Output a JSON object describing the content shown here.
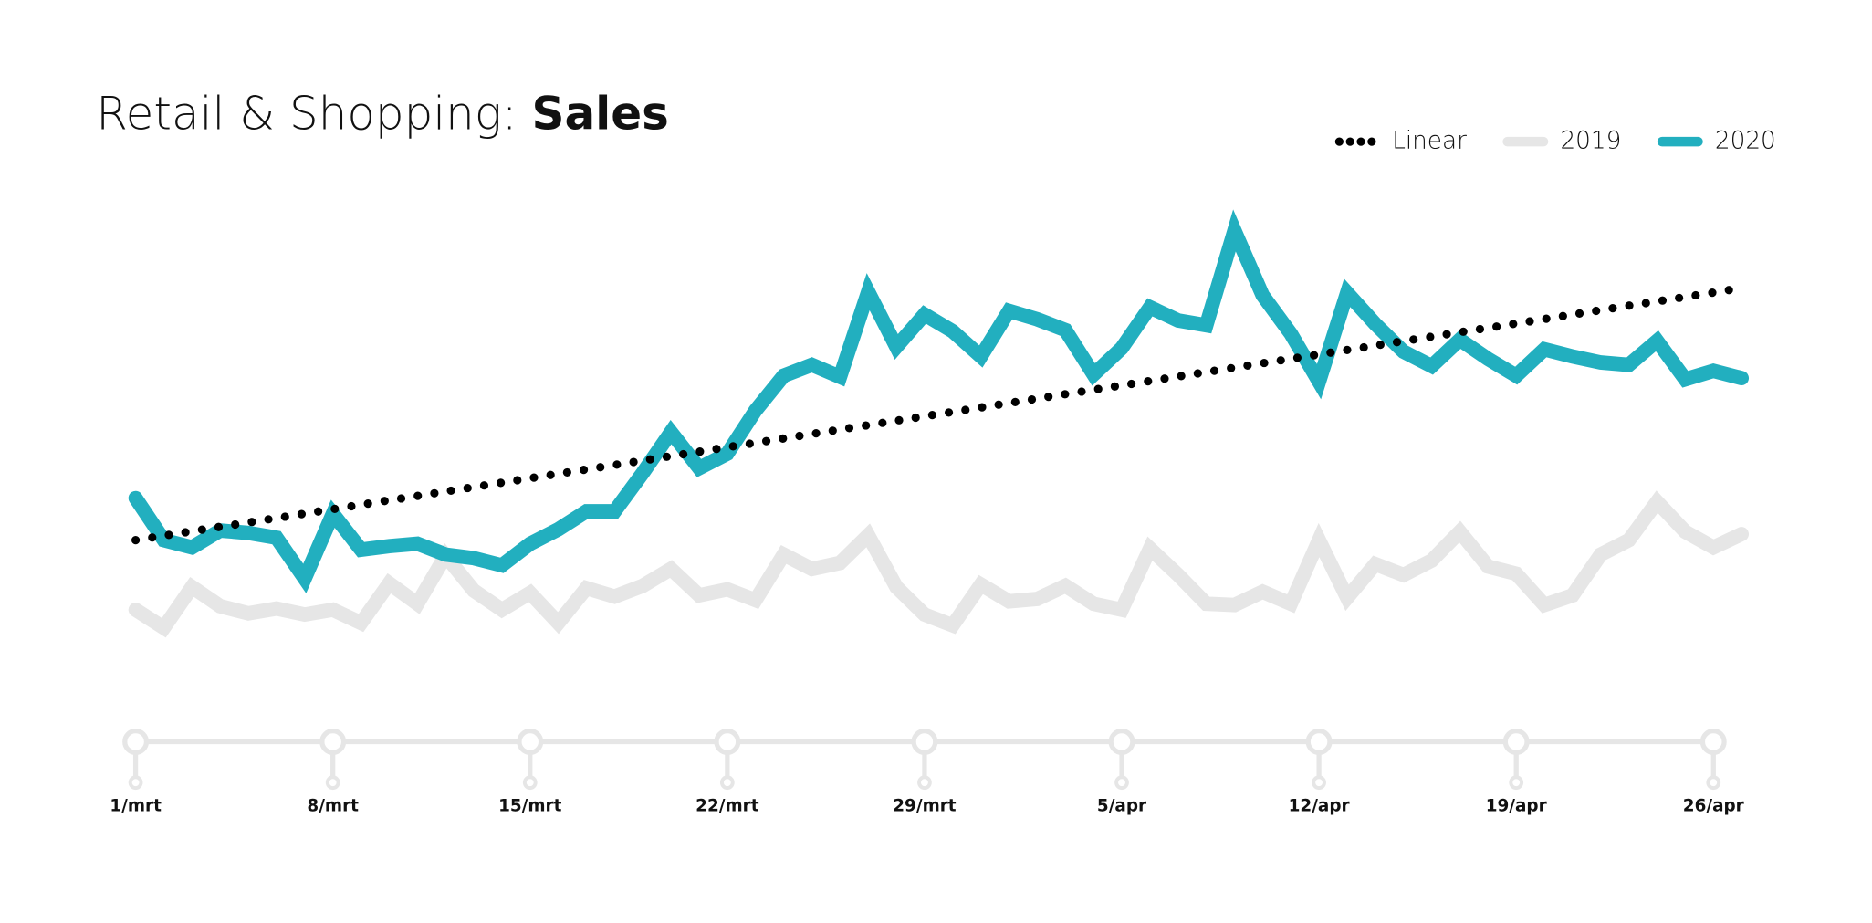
{
  "chart_data": {
    "type": "line",
    "title": "Retail & Shopping:",
    "title_emphasis": "Sales",
    "categories": [
      "1/mrt",
      null,
      null,
      null,
      null,
      null,
      null,
      "8/mrt",
      null,
      null,
      null,
      null,
      null,
      null,
      "15/mrt",
      null,
      null,
      null,
      null,
      null,
      null,
      "22/mrt",
      null,
      null,
      null,
      null,
      null,
      null,
      "29/mrt",
      null,
      null,
      null,
      null,
      null,
      null,
      "5/apr",
      null,
      null,
      null,
      null,
      null,
      null,
      "12/apr",
      null,
      null,
      null,
      null,
      null,
      null,
      "19/apr",
      null,
      null,
      null,
      null,
      null,
      null,
      "26/apr",
      null
    ],
    "ylim": [
      0,
      450
    ],
    "legend": "top-right",
    "series": [
      {
        "name": "Linear",
        "color": "#000000",
        "style": "dotted",
        "values": [
          150.0,
          153.7,
          157.4,
          161.1,
          164.7,
          168.4,
          172.1,
          175.8,
          179.5,
          183.2,
          186.8,
          190.5,
          194.2,
          197.9,
          201.6,
          205.3,
          208.9,
          212.6,
          216.3,
          220.0,
          223.7,
          227.4,
          231.1,
          234.7,
          238.4,
          242.1,
          245.8,
          249.5,
          253.2,
          256.8,
          260.5,
          264.2,
          267.9,
          271.6,
          275.3,
          278.9,
          282.6,
          286.3,
          290.0,
          293.7,
          297.4,
          301.1,
          304.7,
          308.4,
          312.1,
          315.8,
          319.5,
          323.2,
          326.8,
          330.5,
          334.2,
          337.9,
          341.6,
          345.3,
          348.9,
          352.6,
          356.3,
          360.0
        ]
      },
      {
        "name": "2019",
        "color": "#e6e6e6",
        "style": "solid",
        "values": [
          92,
          77,
          111,
          95,
          89,
          93,
          88,
          92,
          81,
          114,
          97,
          137,
          108,
          92,
          106,
          81,
          110,
          103,
          112,
          126,
          104,
          109,
          100,
          138,
          126,
          131,
          154,
          111,
          88,
          79,
          113,
          99,
          101,
          112,
          97,
          92,
          143,
          121,
          97,
          96,
          107,
          97,
          150,
          102,
          130,
          121,
          133,
          157,
          128,
          122,
          96,
          104,
          138,
          150,
          182,
          157,
          144,
          155
        ]
      },
      {
        "name": "2020",
        "color": "#22afbf",
        "style": "solid",
        "values": [
          185,
          150,
          144,
          158,
          156,
          152,
          118,
          172,
          142,
          145,
          147,
          138,
          135,
          129,
          147,
          159,
          174,
          174,
          206,
          240,
          210,
          222,
          258,
          287,
          296,
          286,
          357,
          311,
          338,
          324,
          303,
          341,
          334,
          325,
          288,
          310,
          344,
          333,
          329,
          408,
          354,
          322,
          282,
          356,
          330,
          307,
          295,
          317,
          301,
          287,
          309,
          303,
          298,
          296,
          316,
          284,
          291,
          285
        ]
      }
    ]
  }
}
